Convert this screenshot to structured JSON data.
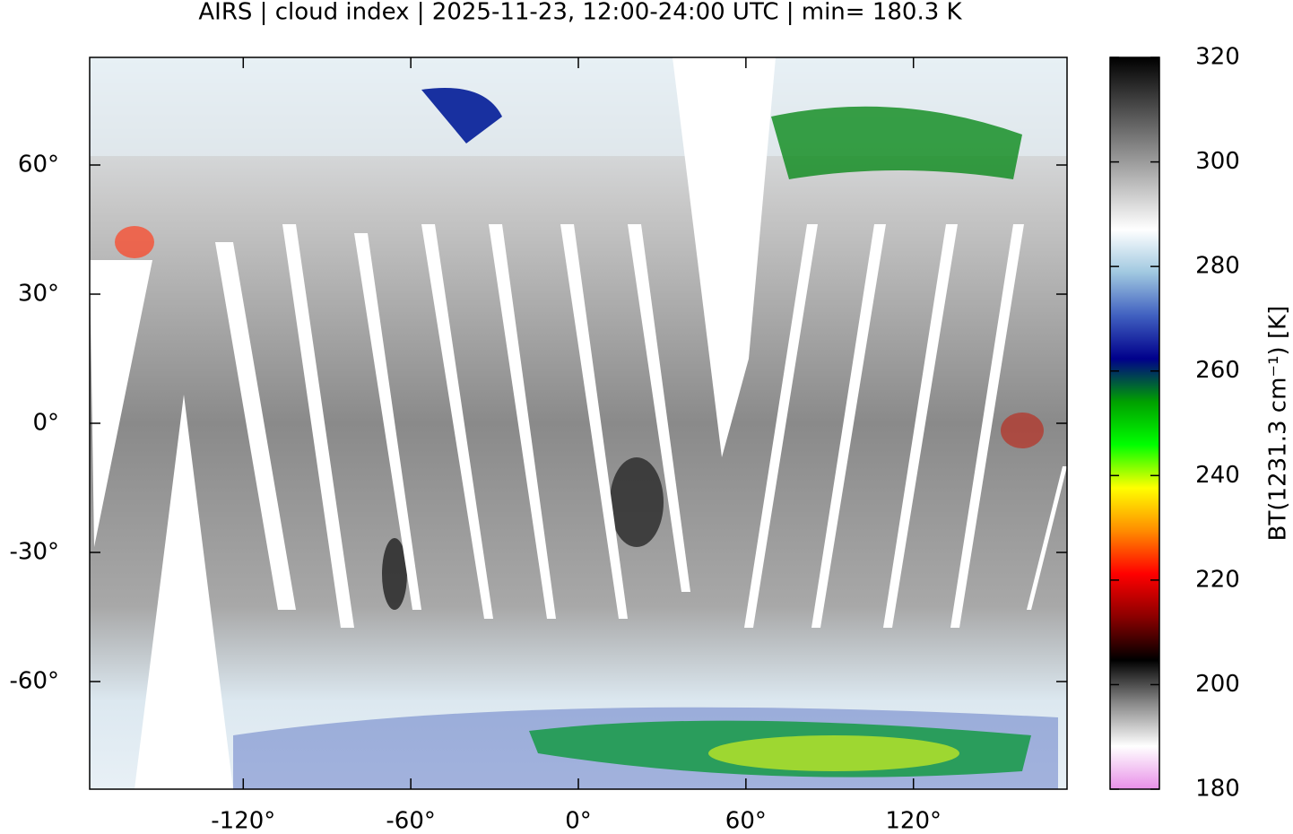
{
  "chart_data": {
    "type": "map",
    "title": "AIRS | cloud index | 2025-11-23, 12:00-24:00 UTC | min= 180.3 K",
    "xlim": [
      -175,
      175
    ],
    "ylim": [
      -85,
      85
    ],
    "xticks": [
      {
        "value": -120,
        "label": "-120°"
      },
      {
        "value": -60,
        "label": "-60°"
      },
      {
        "value": 0,
        "label": "0°"
      },
      {
        "value": 60,
        "label": "60°"
      },
      {
        "value": 120,
        "label": "120°"
      }
    ],
    "yticks": [
      {
        "value": 60,
        "label": "60°"
      },
      {
        "value": 30,
        "label": "30°"
      },
      {
        "value": 0,
        "label": "0°"
      },
      {
        "value": -30,
        "label": "-30°"
      },
      {
        "value": -60,
        "label": "-60°"
      }
    ],
    "colorbar": {
      "label": "BT(1231.3 cm⁻¹) [K]",
      "lim": [
        180,
        320
      ],
      "ticks": [
        180,
        200,
        220,
        240,
        260,
        280,
        300,
        320
      ],
      "colors": [
        "#e890e8",
        "#ffffff",
        "#888888",
        "#000000",
        "#8b0000",
        "#ff0000",
        "#ff8c00",
        "#ffff00",
        "#00ff00",
        "#00a000",
        "#00008b",
        "#4060c0",
        "#a0c8e0",
        "#ffffff",
        "#c0c0c0",
        "#808080",
        "#404040",
        "#000000"
      ]
    }
  }
}
